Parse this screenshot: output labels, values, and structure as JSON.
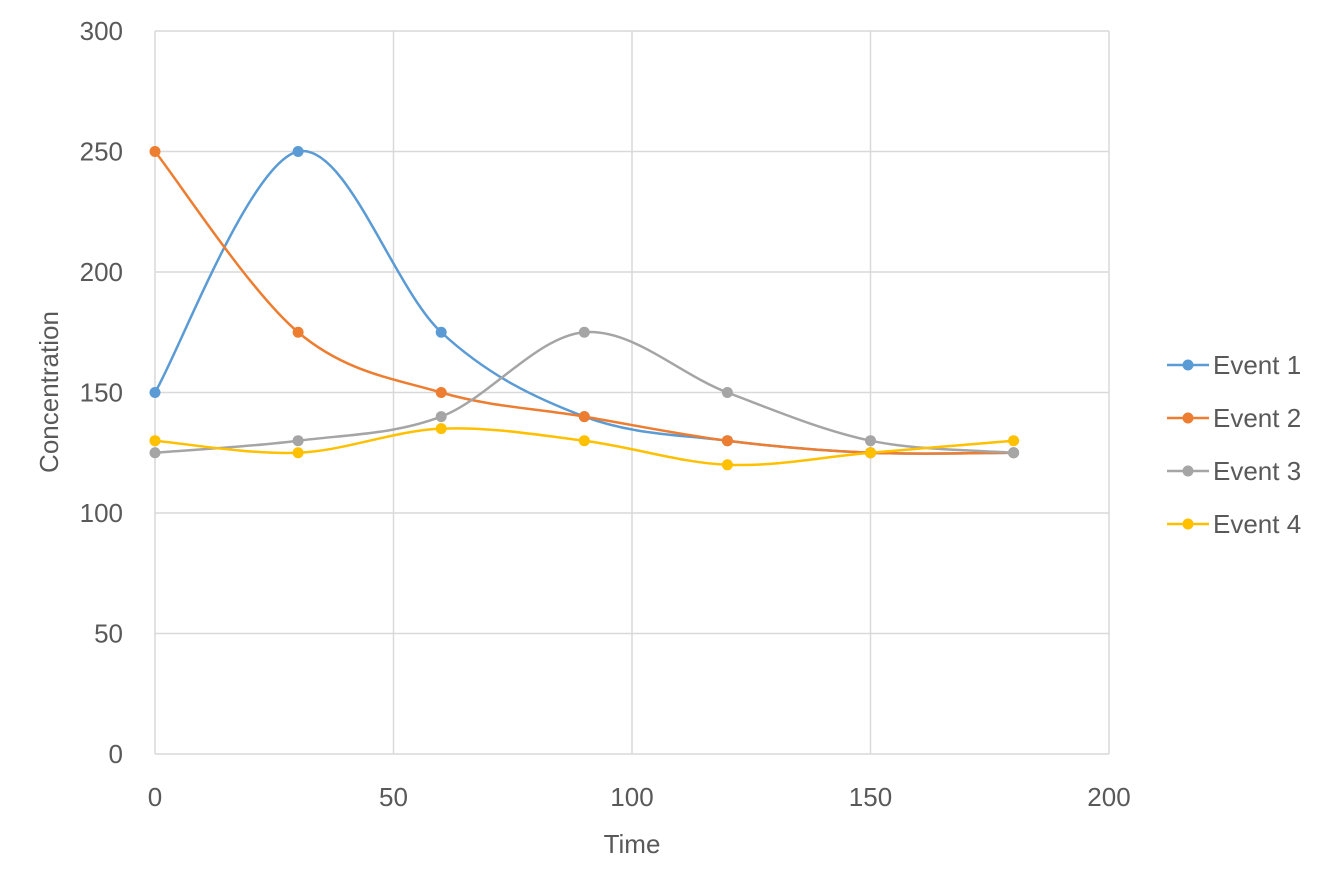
{
  "chart_data": {
    "type": "line",
    "title": "",
    "xlabel": "Time",
    "ylabel": "Concentration",
    "xlim": [
      0,
      200
    ],
    "ylim": [
      0,
      300
    ],
    "x_ticks": [
      0,
      50,
      100,
      150,
      200
    ],
    "y_ticks": [
      0,
      50,
      100,
      150,
      200,
      250,
      300
    ],
    "grid": true,
    "smooth": true,
    "legend_position": "right",
    "x": [
      0,
      30,
      60,
      90,
      120,
      150,
      180
    ],
    "series": [
      {
        "name": "Event 1",
        "color": "#5b9bd5",
        "values": [
          150,
          250,
          175,
          140,
          130,
          125,
          125
        ]
      },
      {
        "name": "Event 2",
        "color": "#ed7d31",
        "values": [
          250,
          175,
          150,
          140,
          130,
          125,
          125
        ]
      },
      {
        "name": "Event 3",
        "color": "#a5a5a5",
        "values": [
          125,
          130,
          140,
          175,
          150,
          130,
          125
        ]
      },
      {
        "name": "Event 4",
        "color": "#ffc000",
        "values": [
          130,
          125,
          135,
          130,
          120,
          125,
          130
        ]
      }
    ]
  }
}
